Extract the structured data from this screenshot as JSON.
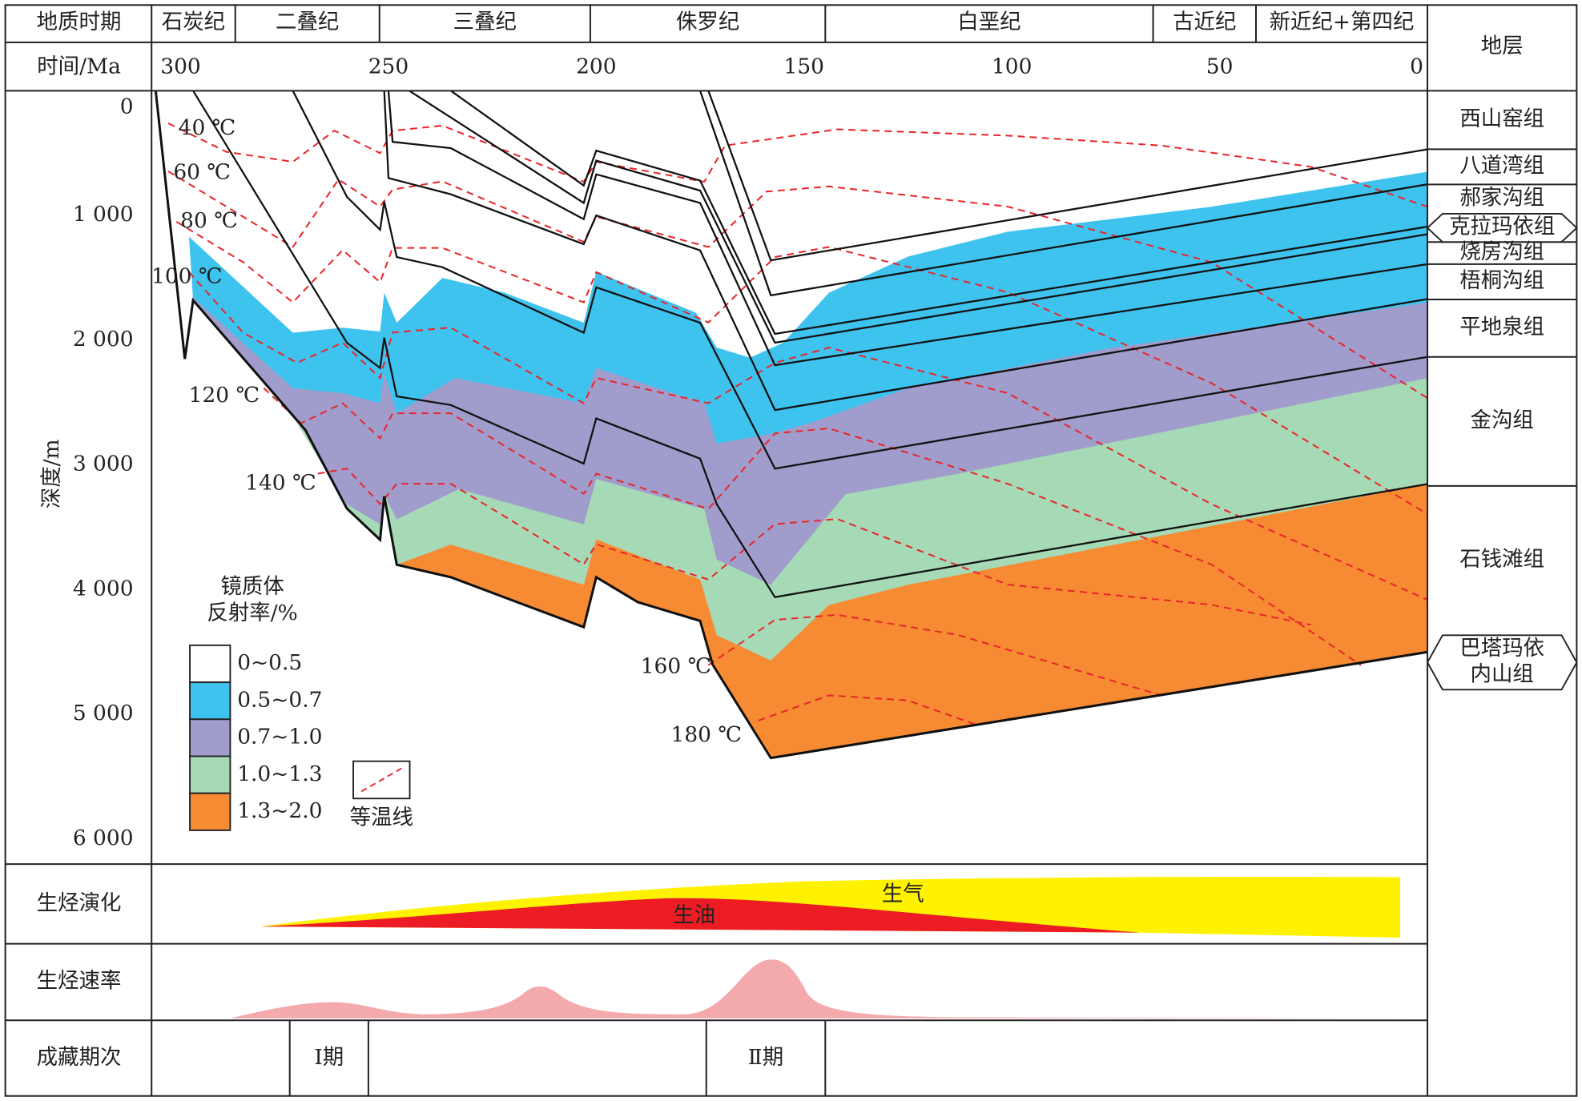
{
  "chart_data": {
    "type": "burial-history",
    "header": {
      "period": "地质时期",
      "time": "时间/Ma",
      "strata": "地层"
    },
    "periods": [
      "石炭纪",
      "二叠纪",
      "三叠纪",
      "侏罗纪",
      "白垩纪",
      "古近纪",
      "新近纪+第四纪"
    ],
    "xlim": [
      307,
      0
    ],
    "xticks": [
      300,
      250,
      200,
      150,
      100,
      50,
      0
    ],
    "ylabel": "深度/m",
    "ylim": [
      0,
      6200
    ],
    "yticks": [
      0,
      {
        "value": 1000,
        "label": "1 000"
      },
      {
        "value": 2000,
        "label": "2 000"
      },
      {
        "value": 3000,
        "label": "3 000"
      },
      {
        "value": 4000,
        "label": "4 000"
      },
      {
        "value": 5000,
        "label": "5 000"
      },
      {
        "value": 6000,
        "label": "6 000"
      }
    ],
    "strata": [
      {
        "lines": [
          "西山窑组"
        ]
      },
      {
        "lines": [
          "八道湾组"
        ]
      },
      {
        "lines": [
          "郝家沟组"
        ]
      },
      {
        "lines": [
          "克拉玛依组"
        ]
      },
      {
        "lines": [
          "烧房沟组"
        ]
      },
      {
        "lines": [
          "梧桐沟组"
        ]
      },
      {
        "lines": [
          "平地泉组"
        ]
      },
      {
        "lines": [
          "金沟组"
        ]
      },
      {
        "lines": [
          "石钱滩组"
        ]
      },
      {
        "lines": [
          "巴塔玛依",
          "内山组"
        ]
      }
    ],
    "legend_title": [
      "镜质体",
      "反射率/%"
    ],
    "maturity": [
      {
        "name": "0~0.5",
        "color": "#ffffff"
      },
      {
        "name": "0.5~0.7",
        "color": "#3ec3ef",
        "x": [
          298,
          273,
          261,
          252,
          251,
          248,
          237,
          222,
          203,
          200,
          176,
          171,
          163,
          155,
          144,
          125,
          101,
          52,
          0
        ],
        "values": [
          1170,
          1940,
          1900,
          1930,
          1620,
          1860,
          1500,
          1620,
          1860,
          1450,
          1780,
          2060,
          2140,
          2020,
          1620,
          1330,
          1130,
          930,
          650
        ]
      },
      {
        "name": "0.7~1.0",
        "color": "#a09ccc",
        "x": [
          297,
          273,
          261,
          252,
          251,
          248,
          234,
          203,
          200,
          174,
          171,
          158,
          149,
          125,
          76,
          0
        ],
        "values": [
          1657,
          2385,
          2425,
          2506,
          2264,
          2587,
          2304,
          2506,
          2223,
          2506,
          2830,
          2750,
          2668,
          2385,
          2062,
          1698
        ]
      },
      {
        "name": "1.0~1.3",
        "color": "#a6d9b5",
        "x": [
          272,
          260,
          252,
          251,
          248,
          233,
          203,
          200,
          174,
          171,
          158,
          140,
          113,
          0
        ],
        "values": [
          2668,
          3315,
          3476,
          3234,
          3436,
          3193,
          3476,
          3112,
          3355,
          3759,
          3961,
          3234,
          3072,
          2304
        ]
      },
      {
        "name": "1.3~2.0",
        "color": "#f68b33",
        "x": [
          248,
          235,
          203,
          200,
          175,
          171,
          158,
          144,
          125,
          0
        ],
        "values": [
          3800,
          3638,
          3961,
          3597,
          3920,
          4365,
          4568,
          4123,
          3961,
          3153
        ]
      }
    ],
    "base": {
      "x": [
        306,
        299,
        297,
        270,
        260,
        252,
        251,
        248,
        235,
        203,
        200,
        190,
        175,
        172,
        158,
        0
      ],
      "values": [
        0,
        2150,
        1680,
        2720,
        3350,
        3600,
        3250,
        3800,
        3900,
        4300,
        3900,
        4100,
        4250,
        4600,
        5350,
        4500
      ]
    },
    "horizons": [
      {
        "x": [
          173,
          158,
          0
        ],
        "values": [
          0,
          1360,
          470
        ]
      },
      {
        "x": [
          175,
          158,
          0
        ],
        "values": [
          0,
          1640,
          750
        ]
      },
      {
        "x": [
          235,
          203,
          200,
          175,
          157,
          0
        ],
        "values": [
          0,
          760,
          480,
          720,
          1950,
          1090
        ]
      },
      {
        "x": [
          245,
          203,
          200,
          175,
          157,
          0
        ],
        "values": [
          0,
          900,
          560,
          800,
          2020,
          1150
        ]
      },
      {
        "x": [
          250,
          249,
          235,
          203,
          200,
          175,
          157,
          0
        ],
        "values": [
          0,
          410,
          460,
          1030,
          670,
          900,
          2200,
          1390
        ]
      },
      {
        "x": [
          251,
          250,
          235,
          203,
          200,
          175,
          157,
          0
        ],
        "values": [
          0,
          700,
          830,
          1230,
          1000,
          1280,
          2560,
          1670
        ]
      },
      {
        "x": [
          273,
          260,
          252,
          251,
          248,
          237,
          203,
          200,
          175,
          157,
          0
        ],
        "values": [
          0,
          850,
          1115,
          890,
          1334,
          1415,
          1940,
          1576,
          1860,
          3030,
          2134
        ]
      },
      {
        "x": [
          297,
          260,
          252,
          251,
          248,
          235,
          203,
          200,
          175,
          171,
          157,
          0
        ],
        "values": [
          0,
          2020,
          2223,
          1980,
          2450,
          2520,
          2990,
          2627,
          2950,
          3315,
          4060,
          3153
        ]
      }
    ],
    "isotherm_color": "#e8262a",
    "isotherm_legend": "等温线",
    "isotherms": [
      {
        "name": "40 ℃",
        "x": [
          303,
          289,
          273,
          263,
          252,
          249,
          237,
          203,
          200,
          174,
          169,
          142,
          101,
          64,
          28,
          0
        ],
        "values": [
          260,
          490,
          570,
          320,
          500,
          320,
          280,
          730,
          570,
          730,
          440,
          310,
          360,
          440,
          610,
          930
        ]
      },
      {
        "name": "60 ℃",
        "x": [
          303,
          285,
          273,
          262,
          252,
          249,
          237,
          203,
          200,
          173,
          159,
          144,
          101,
          52,
          0
        ],
        "values": [
          646,
          1010,
          1253,
          711,
          929,
          792,
          727,
          1212,
          1010,
          1253,
          808,
          767,
          929,
          1374,
          2464
        ]
      },
      {
        "name": "80 ℃",
        "x": [
          301,
          285,
          273,
          261,
          252,
          249,
          237,
          203,
          200,
          173,
          157,
          144,
          101,
          52,
          0
        ],
        "values": [
          1050,
          1374,
          1697,
          1277,
          1535,
          1260,
          1260,
          1697,
          1454,
          1858,
          1333,
          1252,
          1616,
          2343,
          3394
        ]
      },
      {
        "name": "100 ℃",
        "x": [
          298,
          285,
          272,
          261,
          252,
          249,
          235,
          203,
          200,
          173,
          157,
          144,
          101,
          52,
          0
        ],
        "values": [
          1454,
          1939,
          2181,
          2020,
          2303,
          1939,
          1899,
          2505,
          2303,
          2505,
          2182,
          2060,
          2424,
          3313,
          4081
        ]
      },
      {
        "name": "120 ℃",
        "x": [
          280,
          271,
          261,
          252,
          249,
          235,
          203,
          200,
          173,
          157,
          144,
          101,
          52,
          16
        ],
        "values": [
          2384,
          2666,
          2505,
          2787,
          2586,
          2586,
          3232,
          3070,
          3353,
          2747,
          2707,
          3151,
          3798,
          4606
        ]
      },
      {
        "name": "140 ℃",
        "x": [
          267,
          260,
          252,
          248,
          235,
          203,
          200,
          173,
          157,
          142,
          101,
          52,
          28
        ],
        "values": [
          3070,
          3030,
          3313,
          3151,
          3151,
          3798,
          3636,
          3919,
          3474,
          3434,
          3959,
          4121,
          4282
        ]
      },
      {
        "name": "160 ℃",
        "x": [
          173,
          157,
          142,
          113,
          64
        ],
        "values": [
          4605,
          4242,
          4202,
          4363,
          4848
        ]
      },
      {
        "name": "180 ℃",
        "x": [
          161,
          144,
          125,
          108
        ],
        "values": [
          5050,
          4848,
          4888,
          5090
        ]
      }
    ],
    "rows": {
      "evolution": "生烃演化",
      "rate": "生烃速率",
      "accumulation": "成藏期次"
    },
    "gas": "生气",
    "oil": "生油",
    "stages": [
      "Ⅰ期",
      "Ⅱ期"
    ]
  }
}
